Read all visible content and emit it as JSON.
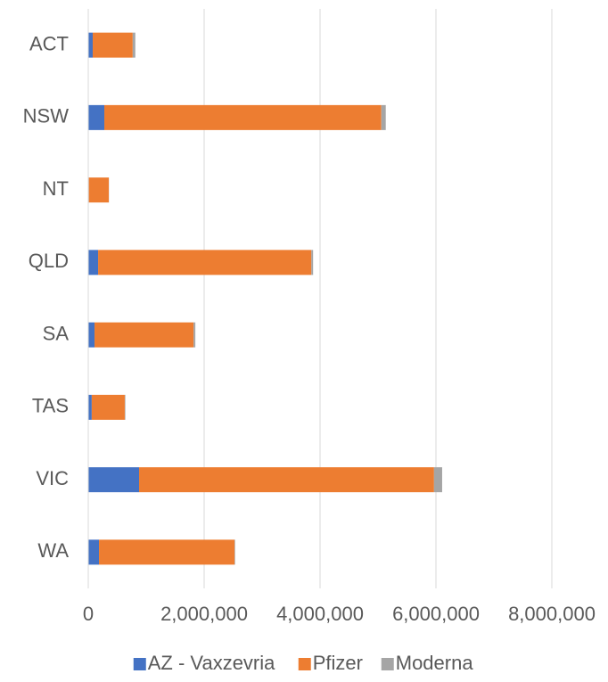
{
  "chart_data": {
    "type": "stacked-barh",
    "categories": [
      "ACT",
      "NSW",
      "NT",
      "QLD",
      "SA",
      "TAS",
      "VIC",
      "WA"
    ],
    "series": [
      {
        "name": "AZ - Vaxzevria",
        "color": "#4472c4",
        "values": [
          77000,
          277000,
          10000,
          170000,
          108000,
          60000,
          877000,
          185000
        ]
      },
      {
        "name": "Pfizer",
        "color": "#ed7d31",
        "values": [
          690000,
          4780000,
          344000,
          3680000,
          1710000,
          570000,
          5090000,
          2340000
        ]
      },
      {
        "name": "Moderna",
        "color": "#a5a5a5",
        "values": [
          45000,
          77000,
          3000,
          30000,
          30000,
          10000,
          140000,
          10000
        ]
      }
    ],
    "xlim": [
      0,
      8000000
    ],
    "xticks": [
      0,
      {
        "value": 2000000,
        "label": "2,000,000"
      },
      {
        "value": 4000000,
        "label": "4,000,000"
      },
      {
        "value": 6000000,
        "label": "6,000,000"
      },
      {
        "value": 8000000,
        "label": "8,000,000"
      }
    ],
    "grid": true,
    "legend": "bottom"
  }
}
